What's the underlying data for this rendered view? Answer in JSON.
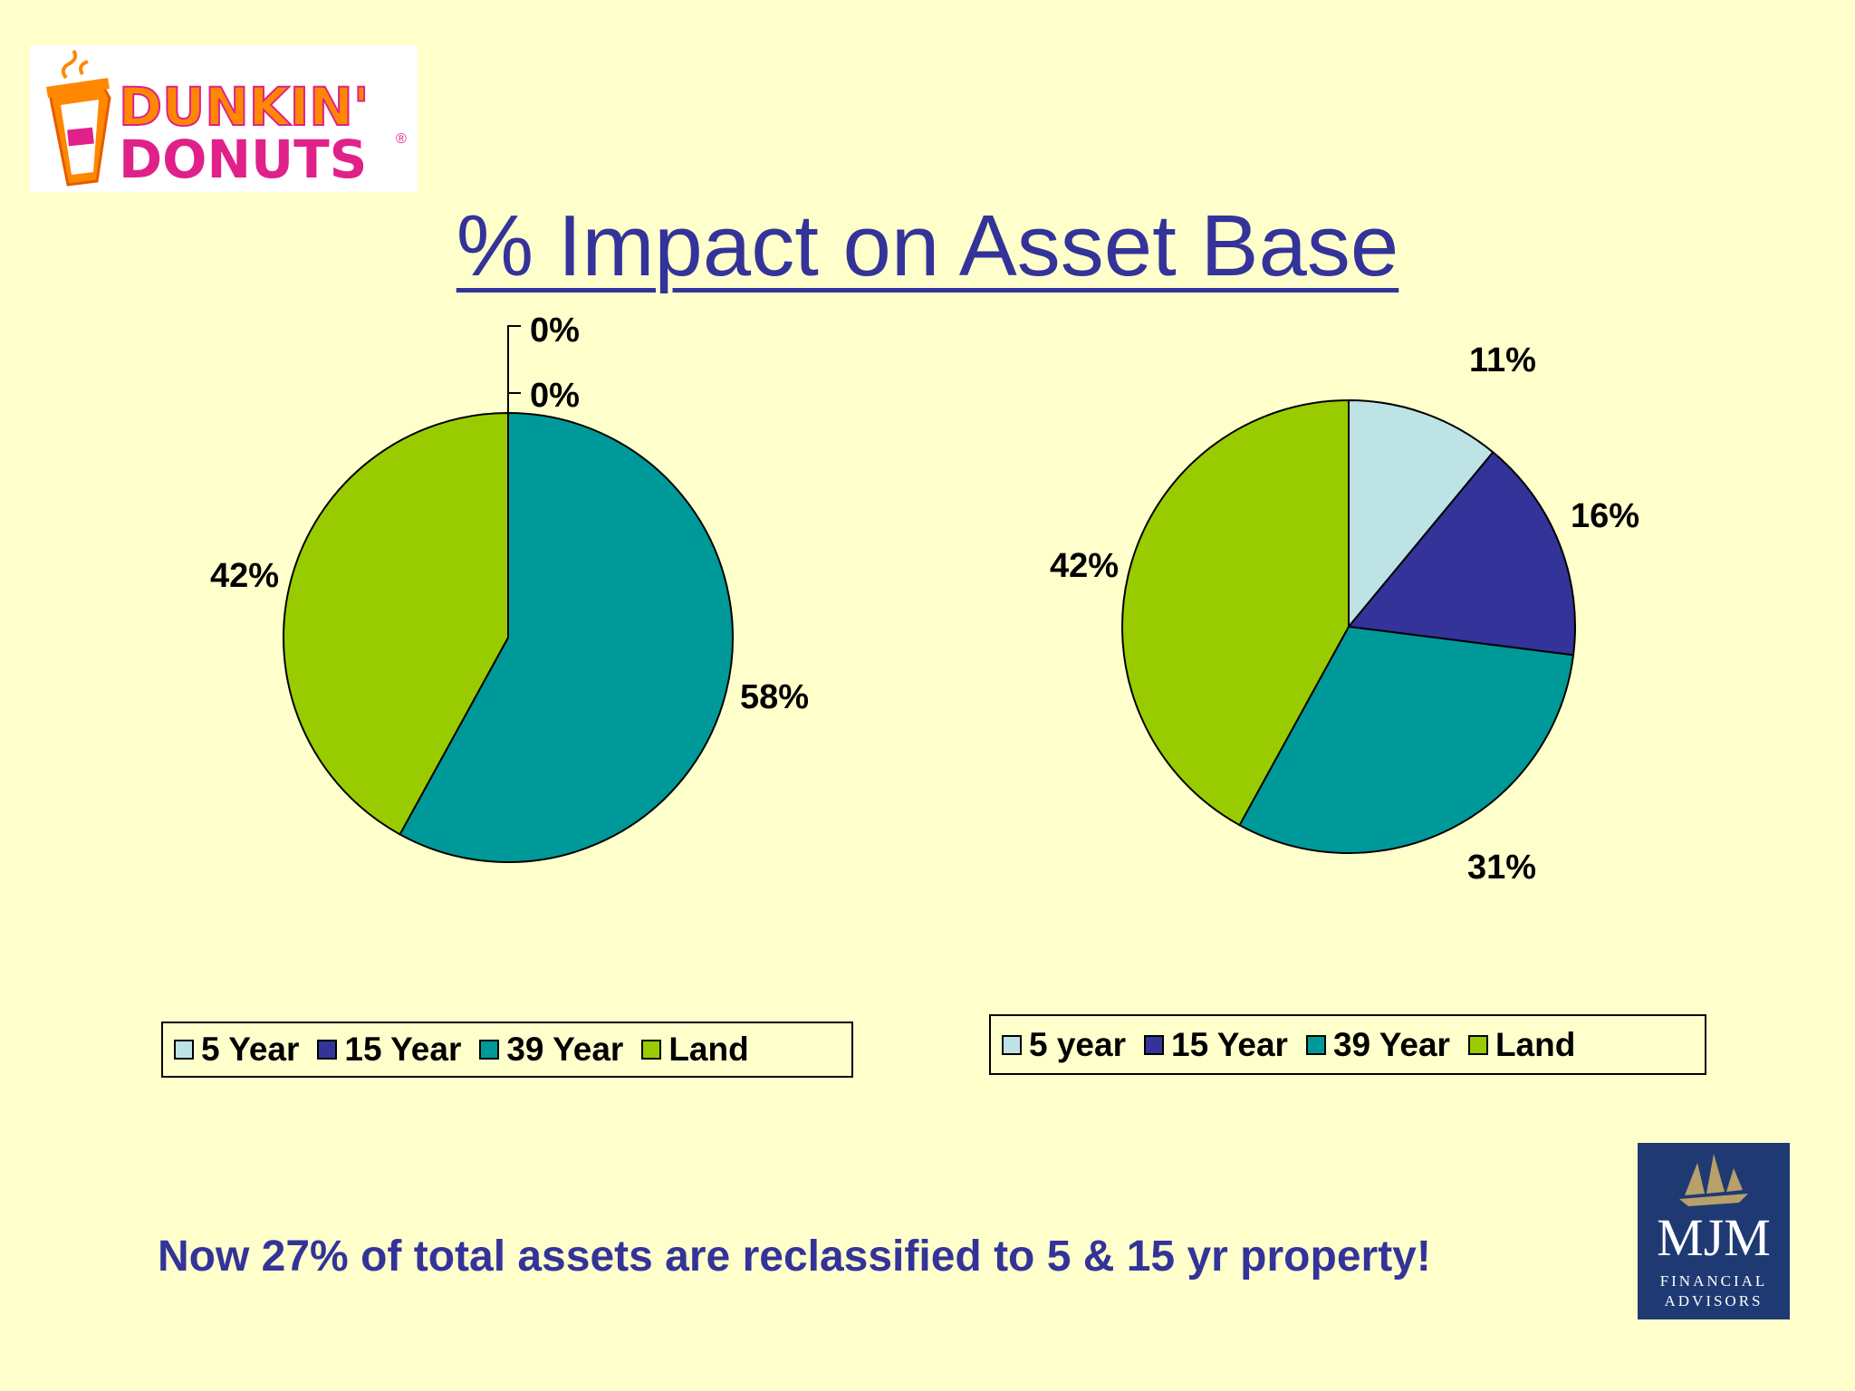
{
  "title": "% Impact on Asset Base",
  "logos": {
    "dunkin": {
      "line1": "DUNKIN'",
      "line2": "DONUTS"
    },
    "mjm": {
      "name": "MJM",
      "line1": "FINANCIAL",
      "line2": "ADVISORS"
    }
  },
  "colors": {
    "background": "#FFFFCC",
    "title": "#333399",
    "five_year": "#BDE3E6",
    "fifteen_year": "#333399",
    "thirtynine_year": "#009999",
    "land": "#99CC00"
  },
  "chart_data": [
    {
      "type": "pie",
      "categories": [
        "5 Year",
        "15 Year",
        "39 Year",
        "Land"
      ],
      "values": [
        0,
        0,
        58,
        42
      ],
      "data_labels": [
        "0%",
        "0%",
        "58%",
        "42%"
      ],
      "legend_labels": [
        "5 Year",
        "15 Year",
        "39 Year",
        "Land"
      ],
      "legend_position": "bottom"
    },
    {
      "type": "pie",
      "categories": [
        "5 year",
        "15 Year",
        "39 Year",
        "Land"
      ],
      "values": [
        11,
        16,
        31,
        42
      ],
      "data_labels": [
        "11%",
        "16%",
        "31%",
        "42%"
      ],
      "legend_labels": [
        "5 year",
        "15 Year",
        "39 Year",
        "Land"
      ],
      "legend_position": "bottom"
    }
  ],
  "footer": "Now 27% of total assets are reclassified to 5 & 15 yr property!"
}
